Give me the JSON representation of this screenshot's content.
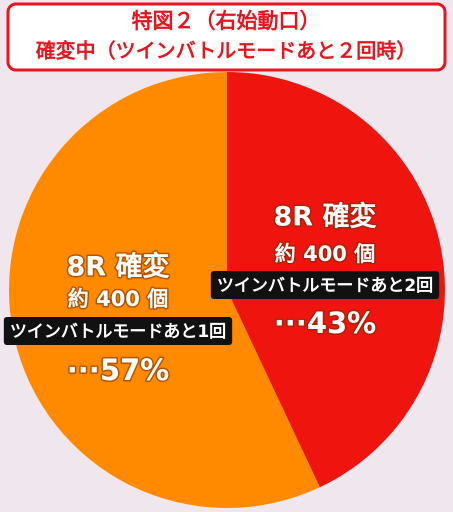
{
  "chart_data": {
    "type": "pie",
    "title": "特図２（右始動口）",
    "subtitle": "確変中（ツインバトルモードあと２回時）",
    "categories": [
      "ツインバトルモードあと2回",
      "ツインバトルモードあと1回"
    ],
    "rounds": [
      "8R 確変",
      "8R 確変"
    ],
    "payouts": [
      "約 400 個",
      "約 400 個"
    ],
    "values": [
      43,
      57
    ],
    "value_labels": [
      "···43%",
      "···57%"
    ],
    "colors": [
      "#f0140f",
      "#ff8a00"
    ]
  }
}
